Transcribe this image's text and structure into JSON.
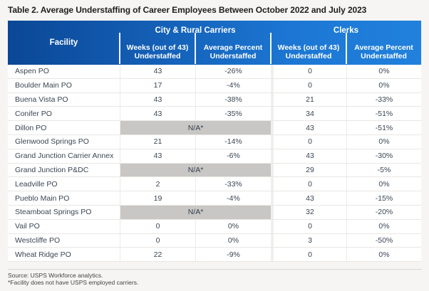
{
  "title": "Table 2. Average Understaffing of Career Employees Between October 2022 and July 2023",
  "table": {
    "facility_header": "Facility",
    "groups": [
      {
        "label": "City & Rural Carriers",
        "columns": [
          "Weeks (out of 43) Understaffed",
          "Average Percent Understaffed"
        ]
      },
      {
        "label": "Clerks",
        "columns": [
          "Weeks (out of 43) Understaffed",
          "Average Percent Understaffed"
        ]
      }
    ],
    "na_label": "N/A*",
    "rows": [
      {
        "facility": "Aspen PO",
        "carriers_na": false,
        "carriers_weeks": "43",
        "carriers_pct": "-26%",
        "clerks_weeks": "0",
        "clerks_pct": "0%"
      },
      {
        "facility": "Boulder Main PO",
        "carriers_na": false,
        "carriers_weeks": "17",
        "carriers_pct": "-4%",
        "clerks_weeks": "0",
        "clerks_pct": "0%"
      },
      {
        "facility": "Buena Vista PO",
        "carriers_na": false,
        "carriers_weeks": "43",
        "carriers_pct": "-38%",
        "clerks_weeks": "21",
        "clerks_pct": "-33%"
      },
      {
        "facility": "Conifer PO",
        "carriers_na": false,
        "carriers_weeks": "43",
        "carriers_pct": "-35%",
        "clerks_weeks": "34",
        "clerks_pct": "-51%"
      },
      {
        "facility": "Dillon PO",
        "carriers_na": true,
        "carriers_weeks": null,
        "carriers_pct": null,
        "clerks_weeks": "43",
        "clerks_pct": "-51%"
      },
      {
        "facility": "Glenwood Springs PO",
        "carriers_na": false,
        "carriers_weeks": "21",
        "carriers_pct": "-14%",
        "clerks_weeks": "0",
        "clerks_pct": "0%"
      },
      {
        "facility": "Grand Junction Carrier Annex",
        "carriers_na": false,
        "carriers_weeks": "43",
        "carriers_pct": "-6%",
        "clerks_weeks": "43",
        "clerks_pct": "-30%"
      },
      {
        "facility": "Grand Junction P&DC",
        "carriers_na": true,
        "carriers_weeks": null,
        "carriers_pct": null,
        "clerks_weeks": "29",
        "clerks_pct": "-5%"
      },
      {
        "facility": "Leadville PO",
        "carriers_na": false,
        "carriers_weeks": "2",
        "carriers_pct": "-33%",
        "clerks_weeks": "0",
        "clerks_pct": "0%"
      },
      {
        "facility": "Pueblo Main PO",
        "carriers_na": false,
        "carriers_weeks": "19",
        "carriers_pct": "-4%",
        "clerks_weeks": "43",
        "clerks_pct": "-15%"
      },
      {
        "facility": "Steamboat Springs PO",
        "carriers_na": true,
        "carriers_weeks": null,
        "carriers_pct": null,
        "clerks_weeks": "32",
        "clerks_pct": "-20%"
      },
      {
        "facility": "Vail PO",
        "carriers_na": false,
        "carriers_weeks": "0",
        "carriers_pct": "0%",
        "clerks_weeks": "0",
        "clerks_pct": "0%"
      },
      {
        "facility": "Westcliffe PO",
        "carriers_na": false,
        "carriers_weeks": "0",
        "carriers_pct": "0%",
        "clerks_weeks": "3",
        "clerks_pct": "-50%"
      },
      {
        "facility": "Wheat Ridge PO",
        "carriers_na": false,
        "carriers_weeks": "22",
        "carriers_pct": "-9%",
        "clerks_weeks": "0",
        "clerks_pct": "0%"
      }
    ]
  },
  "footer": {
    "source": "Source: USPS Workforce analytics.",
    "footnote": "*Facility does not have USPS employed carriers."
  },
  "colors": {
    "header_gradient_left": "#0b4796",
    "header_gradient_right": "#2181dc",
    "header_text": "#ffffff",
    "body_text": "#3a4553",
    "na_cell_bg": "#c8c7c5",
    "row_border": "#e9e7e4",
    "page_background": "#f6f5f3"
  }
}
